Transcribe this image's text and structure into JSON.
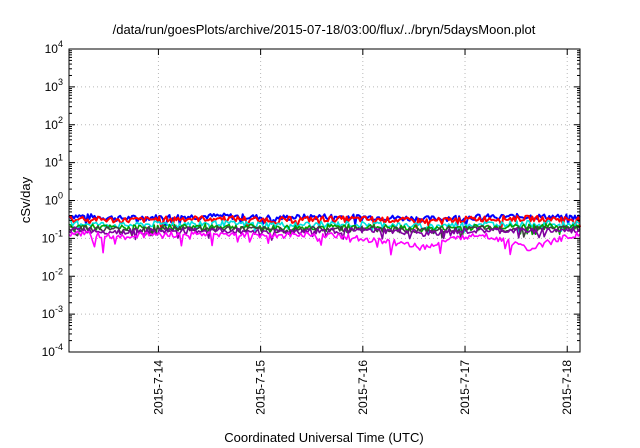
{
  "chart_data": {
    "type": "line",
    "title": "/data/run/goesPlots/archive/2015-07-18/03:00/flux/../bryn/5daysMoon.plot",
    "xlabel": "Coordinated Universal Time (UTC)",
    "ylabel": "cSv/day",
    "yscale": "log",
    "ylim": [
      0.0001,
      10000
    ],
    "xlim": [
      "2015-07-13T03:00",
      "2015-07-18T03:00"
    ],
    "grid": true,
    "y_ticks": [
      {
        "value": 0.0001,
        "base": "10",
        "exp": "-4"
      },
      {
        "value": 0.001,
        "base": "10",
        "exp": "-3"
      },
      {
        "value": 0.01,
        "base": "10",
        "exp": "-2"
      },
      {
        "value": 0.1,
        "base": "10",
        "exp": "-1"
      },
      {
        "value": 1,
        "base": "10",
        "exp": "0"
      },
      {
        "value": 10,
        "base": "10",
        "exp": "1"
      },
      {
        "value": 100,
        "base": "10",
        "exp": "2"
      },
      {
        "value": 1000,
        "base": "10",
        "exp": "3"
      },
      {
        "value": 10000,
        "base": "10",
        "exp": "4"
      }
    ],
    "x_ticks": [
      {
        "value": "2015-07-14T00:00",
        "label": "2015-7-14"
      },
      {
        "value": "2015-07-15T00:00",
        "label": "2015-7-15"
      },
      {
        "value": "2015-07-16T00:00",
        "label": "2015-7-16"
      },
      {
        "value": "2015-07-17T00:00",
        "label": "2015-7-17"
      },
      {
        "value": "2015-07-18T00:00",
        "label": "2015-7-18"
      }
    ],
    "series": [
      {
        "color": "#0000ff",
        "level": 0.36,
        "x": [
          "2015-07-13T03:00",
          "2015-07-13T15:00",
          "2015-07-14T03:00",
          "2015-07-14T15:00",
          "2015-07-15T03:00",
          "2015-07-15T15:00",
          "2015-07-16T03:00",
          "2015-07-16T15:00",
          "2015-07-17T03:00",
          "2015-07-17T15:00",
          "2015-07-18T03:00"
        ],
        "values": [
          0.4,
          0.34,
          0.37,
          0.39,
          0.35,
          0.38,
          0.36,
          0.33,
          0.37,
          0.38,
          0.36
        ]
      },
      {
        "color": "#ff0000",
        "level": 0.32,
        "x": [
          "2015-07-13T03:00",
          "2015-07-13T15:00",
          "2015-07-14T03:00",
          "2015-07-14T15:00",
          "2015-07-15T03:00",
          "2015-07-15T15:00",
          "2015-07-16T03:00",
          "2015-07-16T15:00",
          "2015-07-17T03:00",
          "2015-07-17T15:00",
          "2015-07-18T03:00"
        ],
        "values": [
          0.35,
          0.3,
          0.33,
          0.34,
          0.31,
          0.33,
          0.32,
          0.29,
          0.33,
          0.34,
          0.32
        ]
      },
      {
        "color": "#00e0e0",
        "level": 0.24,
        "x": [
          "2015-07-13T03:00",
          "2015-07-13T15:00",
          "2015-07-14T03:00",
          "2015-07-14T15:00",
          "2015-07-15T03:00",
          "2015-07-15T15:00",
          "2015-07-16T03:00",
          "2015-07-16T15:00",
          "2015-07-17T03:00",
          "2015-07-17T15:00",
          "2015-07-18T03:00"
        ],
        "values": [
          0.26,
          0.22,
          0.25,
          0.25,
          0.23,
          0.24,
          0.24,
          0.21,
          0.24,
          0.25,
          0.24
        ]
      },
      {
        "color": "#00a000",
        "level": 0.2,
        "x": [
          "2015-07-13T03:00",
          "2015-07-13T15:00",
          "2015-07-14T03:00",
          "2015-07-14T15:00",
          "2015-07-15T03:00",
          "2015-07-15T15:00",
          "2015-07-16T03:00",
          "2015-07-16T15:00",
          "2015-07-17T03:00",
          "2015-07-17T15:00",
          "2015-07-18T03:00"
        ],
        "values": [
          0.21,
          0.19,
          0.2,
          0.21,
          0.19,
          0.2,
          0.2,
          0.18,
          0.2,
          0.21,
          0.2
        ]
      },
      {
        "color": "#404040",
        "level": 0.18,
        "x": [
          "2015-07-13T03:00",
          "2015-07-13T15:00",
          "2015-07-14T03:00",
          "2015-07-14T15:00",
          "2015-07-15T03:00",
          "2015-07-15T15:00",
          "2015-07-16T03:00",
          "2015-07-16T15:00",
          "2015-07-17T03:00",
          "2015-07-17T15:00",
          "2015-07-18T03:00"
        ],
        "values": [
          0.19,
          0.17,
          0.18,
          0.18,
          0.17,
          0.18,
          0.18,
          0.16,
          0.18,
          0.18,
          0.18
        ]
      },
      {
        "color": "#8000a0",
        "level": 0.16,
        "x": [
          "2015-07-13T03:00",
          "2015-07-13T15:00",
          "2015-07-14T03:00",
          "2015-07-14T15:00",
          "2015-07-15T03:00",
          "2015-07-15T15:00",
          "2015-07-16T03:00",
          "2015-07-16T15:00",
          "2015-07-17T03:00",
          "2015-07-17T15:00",
          "2015-07-18T03:00"
        ],
        "values": [
          0.17,
          0.15,
          0.16,
          0.16,
          0.15,
          0.16,
          0.16,
          0.14,
          0.16,
          0.16,
          0.16
        ]
      },
      {
        "color": "#ff00ff",
        "level": 0.13,
        "x": [
          "2015-07-13T03:00",
          "2015-07-13T15:00",
          "2015-07-14T03:00",
          "2015-07-14T15:00",
          "2015-07-15T03:00",
          "2015-07-15T15:00",
          "2015-07-16T03:00",
          "2015-07-16T15:00",
          "2015-07-17T03:00",
          "2015-07-17T15:00",
          "2015-07-18T03:00"
        ],
        "values": [
          0.14,
          0.12,
          0.13,
          0.13,
          0.12,
          0.13,
          0.09,
          0.06,
          0.13,
          0.05,
          0.13
        ]
      }
    ]
  }
}
